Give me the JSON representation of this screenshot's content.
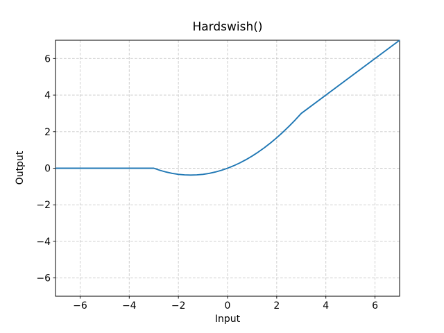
{
  "chart_data": {
    "type": "line",
    "title": "Hardswish()",
    "xlabel": "Input",
    "ylabel": "Output",
    "xlim": [
      -7,
      7
    ],
    "ylim": [
      -7,
      7
    ],
    "xticks": [
      -6,
      -4,
      -2,
      0,
      2,
      4,
      6
    ],
    "xtick_labels": [
      "−6",
      "−4",
      "−2",
      "0",
      "2",
      "4",
      "6"
    ],
    "yticks": [
      -6,
      -4,
      -2,
      0,
      2,
      4,
      6
    ],
    "ytick_labels": [
      "−6",
      "−4",
      "−2",
      "0",
      "2",
      "4",
      "6"
    ],
    "grid": true,
    "grid_style": "dashed",
    "grid_color": "#c9c9c9",
    "spine_color": "#000000",
    "background_color": "#ffffff",
    "legend": "none",
    "series": [
      {
        "name": "Hardswish",
        "color": "#1f77b4",
        "line_width": 1.9,
        "x": [
          -7,
          -3,
          -2.75,
          -2.5,
          -2.25,
          -2,
          -1.75,
          -1.5,
          -1.25,
          -1,
          -0.75,
          -0.5,
          -0.25,
          0,
          0.25,
          0.5,
          0.75,
          1,
          1.25,
          1.5,
          1.75,
          2,
          2.25,
          2.5,
          2.75,
          3,
          7
        ],
        "y": [
          0,
          0,
          -0.1146,
          -0.2083,
          -0.2813,
          -0.3333,
          -0.3646,
          -0.375,
          -0.3646,
          -0.3333,
          -0.2813,
          -0.2083,
          -0.1146,
          0,
          0.1354,
          0.2917,
          0.4688,
          0.6667,
          0.8854,
          1.125,
          1.3854,
          1.6667,
          1.9688,
          2.2917,
          2.6354,
          3,
          7
        ]
      }
    ]
  }
}
